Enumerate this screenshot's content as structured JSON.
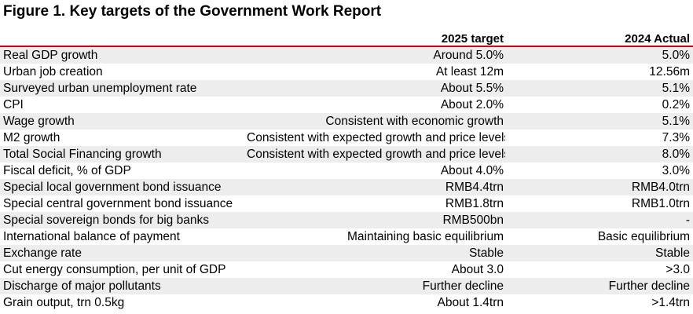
{
  "title": "Figure 1. Key targets of the Government Work Report",
  "headers": [
    "",
    "2025 target",
    "2024 Actual"
  ],
  "rows": [
    [
      "Real GDP growth",
      "Around 5.0%",
      "5.0%"
    ],
    [
      "Urban job creation",
      "At least 12m",
      "12.56m"
    ],
    [
      "Surveyed urban unemployment rate",
      "About 5.5%",
      "5.1%"
    ],
    [
      "CPI",
      "About 2.0%",
      "0.2%"
    ],
    [
      "Wage growth",
      "Consistent with economic growth",
      "5.1%"
    ],
    [
      "M2 growth",
      "Consistent with expected growth and price levels",
      "7.3%"
    ],
    [
      "Total Social Financing growth",
      "Consistent with expected growth and price levels",
      "8.0%"
    ],
    [
      "Fiscal deficit, % of GDP",
      "About 4.0%",
      "3.0%"
    ],
    [
      "Special local government bond issuance",
      "RMB4.4trn",
      "RMB4.0trn"
    ],
    [
      "Special central government bond issuance",
      "RMB1.8trn",
      "RMB1.0trn"
    ],
    [
      "Special sovereign bonds for big banks",
      "RMB500bn",
      "-"
    ],
    [
      "International balance of payment",
      "Maintaining basic equilibrium",
      "Basic equilibrium"
    ],
    [
      "Exchange rate",
      "Stable",
      "Stable"
    ],
    [
      "Cut energy consumption, per unit of GDP",
      "About 3.0",
      ">3.0"
    ],
    [
      "Discharge of major pollutants",
      "Further decline",
      "Further decline"
    ],
    [
      "Grain output, trn 0.5kg",
      "About 1.4trn",
      ">1.4trn"
    ]
  ],
  "colors": {
    "header_rule": "#d9001b",
    "stripe": "#ededed"
  }
}
